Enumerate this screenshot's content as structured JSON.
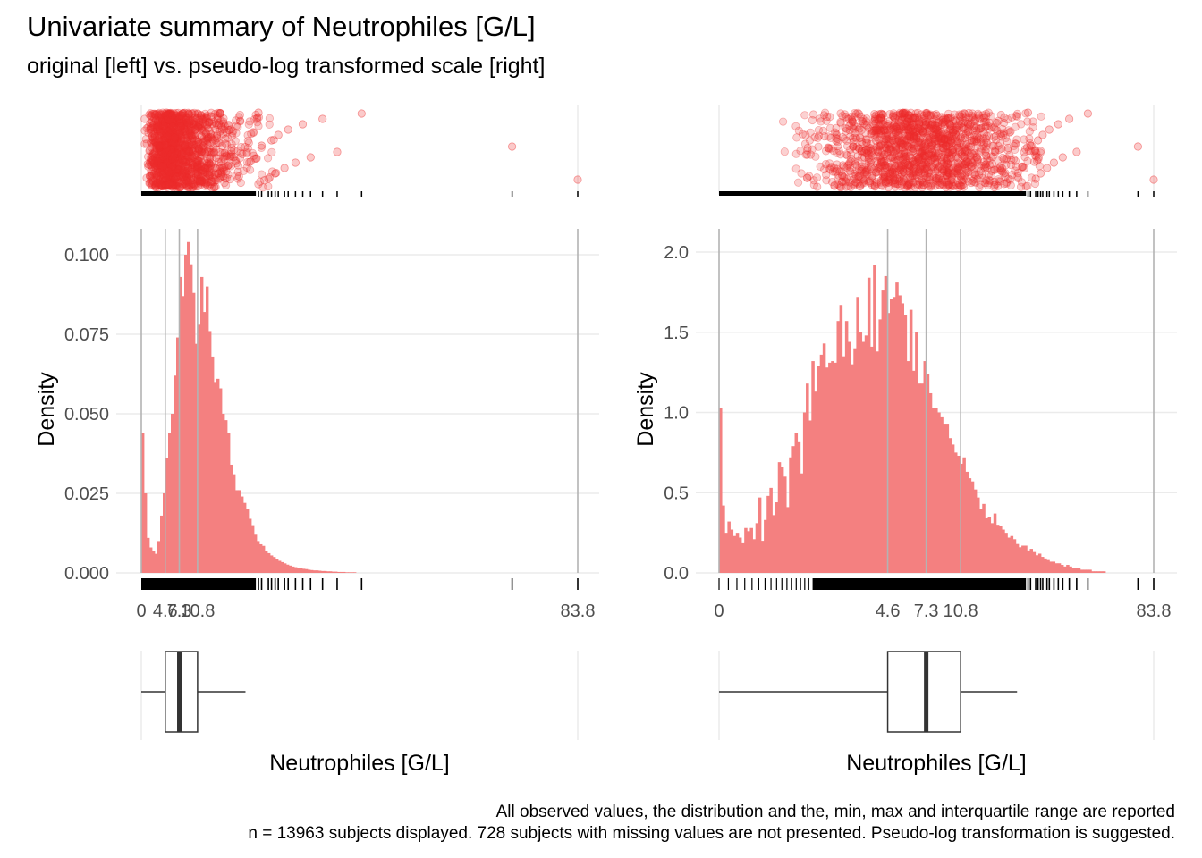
{
  "title": "Univariate summary of Neutrophiles [G/L]",
  "subtitle": "original [left] vs. pseudo-log transformed scale [right]",
  "caption_line1": "All observed values, the distribution and the, min, max and interquartile range are reported",
  "caption_line2": "n = 13963 subjects displayed. 728 subjects with missing values are not presented. Pseudo-log transformation is suggested.",
  "colors": {
    "fill": "#f48080",
    "points": "#ee2c2c",
    "grid": "#ebebeb",
    "refline": "#b3b3b3"
  },
  "chart_data": [
    {
      "type": "histogram",
      "panel": "left",
      "scale": "original",
      "xlabel": "Neutrophiles [G/L]",
      "ylabel": "Density",
      "xlim": [
        0,
        83.8
      ],
      "ylim": [
        0,
        0.105
      ],
      "x_ticks": [
        0,
        4.6,
        7.3,
        10.8,
        83.8
      ],
      "x_tick_labels": [
        "0",
        "4.6",
        "7.3",
        "10.8",
        "83.8"
      ],
      "y_ticks": [
        0,
        0.025,
        0.05,
        0.075,
        0.1
      ],
      "y_tick_labels": [
        "0.000",
        "0.025",
        "0.050",
        "0.075",
        "0.100"
      ],
      "summary": {
        "min": 0,
        "q1": 4.6,
        "median": 7.3,
        "q3": 10.8,
        "max": 83.8,
        "whisker_high": 20
      },
      "bin_width": 0.6,
      "densities": [
        0.044,
        0.025,
        0.011,
        0.008,
        0.007,
        0.006,
        0.01,
        0.018,
        0.025,
        0.036,
        0.044,
        0.05,
        0.062,
        0.074,
        0.093,
        0.087,
        0.1,
        0.104,
        0.097,
        0.088,
        0.072,
        0.078,
        0.093,
        0.082,
        0.09,
        0.076,
        0.068,
        0.06,
        0.061,
        0.058,
        0.05,
        0.048,
        0.044,
        0.034,
        0.031,
        0.026,
        0.026,
        0.024,
        0.022,
        0.02,
        0.017,
        0.015,
        0.012,
        0.01,
        0.009,
        0.0085,
        0.007,
        0.0062,
        0.0055,
        0.005,
        0.0044,
        0.0038,
        0.0034,
        0.003,
        0.0026,
        0.0023,
        0.002,
        0.0018,
        0.0016,
        0.0015,
        0.0013,
        0.0012,
        0.001,
        0.0009,
        0.0008,
        0.0008,
        0.0007,
        0.0006,
        0.0006,
        0.0005,
        0.0005,
        0.0004,
        0.0004,
        0.0003,
        0.0003,
        0.0003,
        0.0002,
        0.0002,
        0.0002,
        0.0002
      ],
      "outliers": [
        22.5,
        23.1,
        24.4,
        25.0,
        25.7,
        26.3,
        27.5,
        28.2,
        29.6,
        31.0,
        32.5,
        34.8,
        37.6,
        42.3,
        71.2,
        83.8
      ]
    },
    {
      "type": "histogram",
      "panel": "right",
      "scale": "pseudo-log",
      "xlabel": "Neutrophiles [G/L]",
      "ylabel": "Density",
      "xlim": [
        0,
        83.8
      ],
      "ylim": [
        0,
        2.1
      ],
      "x_ticks": [
        0,
        4.6,
        7.3,
        10.8,
        83.8
      ],
      "x_tick_labels": [
        "0",
        "4.6",
        "7.3",
        "10.8",
        "83.8"
      ],
      "y_ticks": [
        0,
        0.5,
        1.0,
        1.5,
        2.0
      ],
      "y_tick_labels": [
        "0.0",
        "0.5",
        "1.0",
        "1.5",
        "2.0"
      ],
      "summary": {
        "min": 0,
        "q1": 4.6,
        "median": 7.3,
        "q3": 10.8,
        "max": 83.8,
        "whisker_high": 20
      },
      "bin_width_transformed": 0.026,
      "densities": [
        1.03,
        0.42,
        0.25,
        0.32,
        0.27,
        0.23,
        0.25,
        0.22,
        0.19,
        0.28,
        0.26,
        0.28,
        0.21,
        0.31,
        0.47,
        0.2,
        0.33,
        0.48,
        0.53,
        0.36,
        0.44,
        0.69,
        0.66,
        0.6,
        0.41,
        0.72,
        0.79,
        0.87,
        0.82,
        0.62,
        1.0,
        1.18,
        0.95,
        1.32,
        1.13,
        1.29,
        1.36,
        1.43,
        1.28,
        1.31,
        1.32,
        1.31,
        1.57,
        1.67,
        1.35,
        1.57,
        1.44,
        1.3,
        1.4,
        1.72,
        1.5,
        1.44,
        1.48,
        1.84,
        1.41,
        1.92,
        1.38,
        1.58,
        1.76,
        1.85,
        1.62,
        1.71,
        1.72,
        1.81,
        1.73,
        1.68,
        1.61,
        1.32,
        1.64,
        1.26,
        1.5,
        1.18,
        1.18,
        1.32,
        1.24,
        1.12,
        1.03,
        1.03,
        1.0,
        0.97,
        0.93,
        0.93,
        0.84,
        0.8,
        0.75,
        0.73,
        0.68,
        0.72,
        0.63,
        0.59,
        0.57,
        0.52,
        0.47,
        0.4,
        0.43,
        0.34,
        0.35,
        0.31,
        0.37,
        0.3,
        0.29,
        0.27,
        0.25,
        0.22,
        0.23,
        0.21,
        0.18,
        0.16,
        0.17,
        0.17,
        0.14,
        0.15,
        0.13,
        0.11,
        0.12,
        0.1,
        0.09,
        0.08,
        0.07,
        0.07,
        0.06,
        0.06,
        0.05,
        0.04,
        0.05,
        0.04,
        0.03,
        0.03,
        0.03,
        0.02,
        0.02,
        0.02,
        0.02,
        0.01,
        0.01,
        0.01,
        0.01,
        0.01
      ],
      "outliers": [
        22.5,
        23.1,
        24.4,
        25.0,
        25.7,
        26.3,
        27.5,
        28.2,
        29.6,
        31.0,
        32.5,
        34.8,
        37.6,
        42.3,
        71.2,
        83.8
      ]
    }
  ]
}
